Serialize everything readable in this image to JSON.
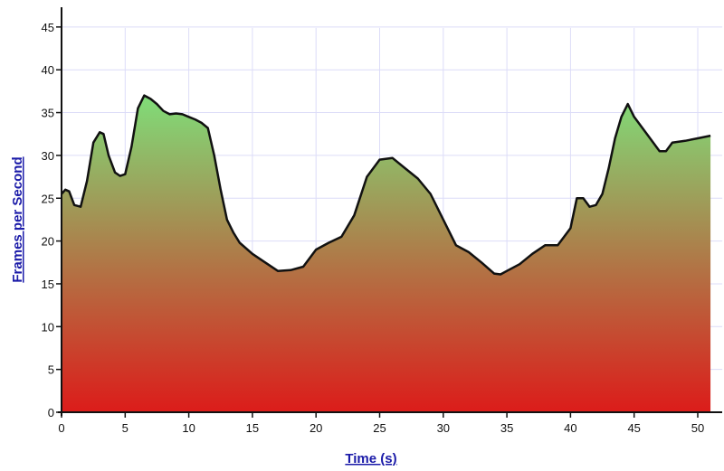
{
  "chart_data": {
    "type": "area",
    "title": "",
    "xlabel": "Time (s)",
    "ylabel": "Frames per Second",
    "xlim": [
      0,
      51.5
    ],
    "ylim": [
      0,
      47
    ],
    "x_ticks": [
      0,
      5,
      10,
      15,
      20,
      25,
      30,
      35,
      40,
      45,
      50
    ],
    "y_ticks": [
      0,
      5,
      10,
      15,
      20,
      25,
      30,
      35,
      40,
      45
    ],
    "grid": true,
    "colors": {
      "fill_top": "#7ee07a",
      "fill_bottom": "#dc1c1a",
      "line": "#111111",
      "grid": "#dcdcf8",
      "axis_title": "#1a1aa8"
    },
    "series": [
      {
        "x": [
          0,
          0.3,
          0.6,
          1.0,
          1.5,
          2.0,
          2.5,
          3.0,
          3.3,
          3.7,
          4.2,
          4.6,
          5.0,
          5.5,
          6.0,
          6.5,
          7.0,
          7.5,
          8.0,
          8.5,
          9.0,
          9.5,
          10,
          10.5,
          11,
          11.5,
          12,
          12.5,
          13,
          13.5,
          14,
          15,
          16,
          17,
          18,
          19,
          20,
          21,
          22,
          23,
          24,
          25,
          26,
          27,
          28,
          29,
          30,
          31,
          32,
          33,
          34,
          34.5,
          35,
          36,
          37,
          38,
          39,
          40,
          40.5,
          41,
          41.5,
          42,
          42.5,
          43,
          43.5,
          44,
          44.5,
          45,
          46,
          47,
          47.5,
          48,
          49,
          50,
          51
        ],
        "y": [
          25.5,
          26,
          25.8,
          24.2,
          24.0,
          27,
          31.5,
          32.7,
          32.5,
          30,
          28,
          27.6,
          27.8,
          31,
          35.5,
          37.0,
          36.6,
          36,
          35.2,
          34.8,
          34.9,
          34.8,
          34.5,
          34.2,
          33.8,
          33.2,
          30,
          26,
          22.5,
          21,
          19.8,
          18.5,
          17.5,
          16.5,
          16.6,
          17,
          19,
          19.8,
          20.5,
          23,
          27.5,
          29.5,
          29.7,
          28.5,
          27.3,
          25.5,
          22.5,
          19.5,
          18.7,
          17.5,
          16.2,
          16.1,
          16.5,
          17.3,
          18.5,
          19.5,
          19.5,
          21.5,
          25,
          25,
          24,
          24.2,
          25.5,
          28.5,
          32,
          34.5,
          36,
          34.5,
          32.5,
          30.5,
          30.5,
          31.5,
          31.7,
          32,
          32.3
        ]
      }
    ]
  }
}
